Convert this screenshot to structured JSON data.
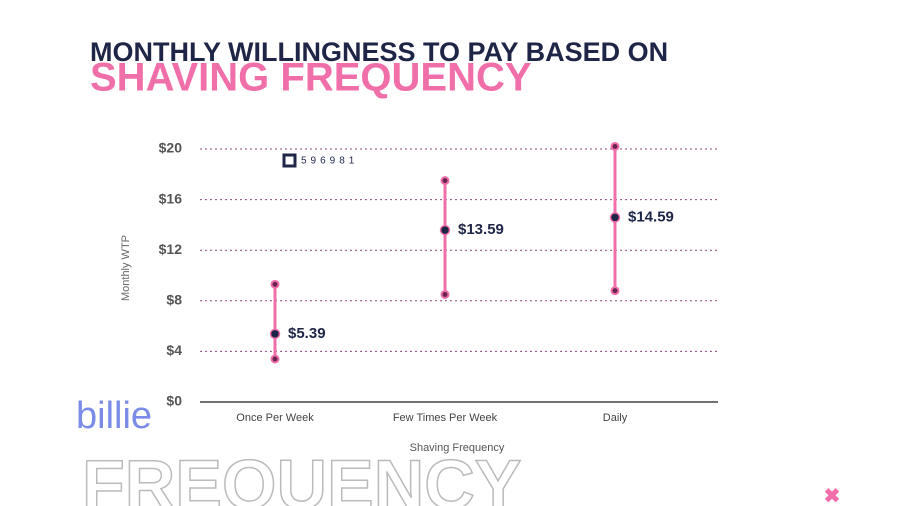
{
  "chart_data": {
    "type": "range",
    "title": "MONTHLY WILLINGNESS TO PAY BASED ON",
    "subtitle": "SHAVING FREQUENCY",
    "y_label": "Monthly WTP",
    "x_label": "Shaving Frequency",
    "badge": "596981",
    "logo": "billie",
    "watermark": "FREQUENCY",
    "categories": [
      "Once Per Week",
      "Few Times Per Week",
      "Daily"
    ],
    "values": [
      5.39,
      13.59,
      14.59
    ],
    "value_labels": [
      "$5.39",
      "$13.59",
      "$14.59"
    ],
    "lower": [
      3.4,
      8.5,
      8.8
    ],
    "upper": [
      9.3,
      17.5,
      20.2
    ],
    "color": "#f06fa8",
    "point_color": "#1f2547",
    "ylim": [
      0,
      20
    ],
    "yticks": [
      {
        "value": 0,
        "label": "$0"
      },
      {
        "value": 4,
        "label": "$4"
      },
      {
        "value": 8,
        "label": "$8"
      },
      {
        "value": 12,
        "label": "$12"
      },
      {
        "value": 16,
        "label": "$16"
      },
      {
        "value": 20,
        "label": "$20"
      }
    ],
    "grid": true
  }
}
